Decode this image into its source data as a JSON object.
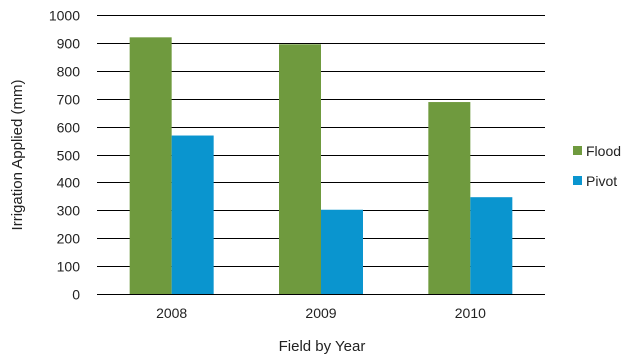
{
  "chart_data": {
    "type": "bar",
    "categories": [
      "2008",
      "2009",
      "2010"
    ],
    "series": [
      {
        "name": "Flood",
        "values": [
          920,
          895,
          688
        ],
        "color": "#6f9a3e"
      },
      {
        "name": "Pivot",
        "values": [
          568,
          302,
          347
        ],
        "color": "#0a95cf"
      }
    ],
    "title": "",
    "xlabel": "Field by Year",
    "ylabel": "Irrigation Applied (mm)",
    "ylim": [
      0,
      1000
    ],
    "yticks": [
      0,
      100,
      200,
      300,
      400,
      500,
      600,
      700,
      800,
      900,
      1000
    ],
    "grid": true,
    "legend_position": "right"
  }
}
